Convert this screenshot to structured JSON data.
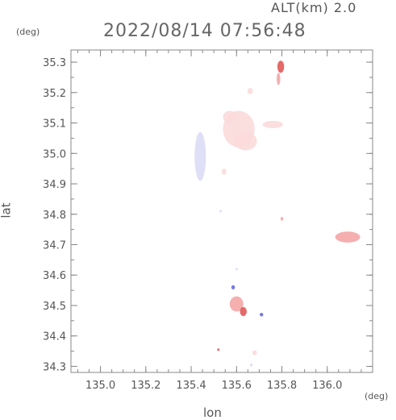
{
  "header": {
    "alt_label": "ALT(km) 2.0",
    "timestamp": "2022/08/14 07:56:48"
  },
  "chart_data": {
    "type": "heatmap",
    "title": "2022/08/14 07:56:48",
    "subtitle": "ALT(km) 2.0",
    "xlabel": "lon",
    "ylabel": "lat",
    "x_unit": "(deg)",
    "y_unit": "(deg)",
    "xlim": [
      134.87,
      136.2
    ],
    "ylim": [
      34.28,
      35.34
    ],
    "x_ticks": [
      135.0,
      135.2,
      135.4,
      135.6,
      135.8,
      136.0
    ],
    "x_tick_labels": [
      "135.0",
      "135.2",
      "135.4",
      "135.6",
      "135.8",
      "136.0"
    ],
    "y_ticks": [
      34.3,
      34.4,
      34.5,
      34.6,
      34.7,
      34.8,
      34.9,
      35.0,
      35.1,
      35.2,
      35.3
    ],
    "y_tick_labels": [
      "34.3",
      "34.4",
      "34.5",
      "34.6",
      "34.7",
      "34.8",
      "34.9",
      "35.0",
      "35.1",
      "35.2",
      "35.3"
    ],
    "grid": false,
    "colors": {
      "positive_light": "#fbdada",
      "positive_mid": "#f4a6a6",
      "positive_strong": "#e05a5a",
      "negative_light": "#dcdcf6",
      "negative_strong": "#6a6ae6"
    },
    "blobs": [
      {
        "lon": 135.61,
        "lat": 35.08,
        "rlon": 0.07,
        "rlat": 0.06,
        "intensity": 0.25
      },
      {
        "lon": 135.64,
        "lat": 35.04,
        "rlon": 0.05,
        "rlat": 0.03,
        "intensity": 0.2
      },
      {
        "lon": 135.76,
        "lat": 35.095,
        "rlon": 0.045,
        "rlat": 0.012,
        "intensity": 0.3
      },
      {
        "lon": 135.57,
        "lat": 35.12,
        "rlon": 0.03,
        "rlat": 0.02,
        "intensity": 0.2
      },
      {
        "lon": 135.795,
        "lat": 35.285,
        "rlon": 0.015,
        "rlat": 0.02,
        "intensity": 0.8
      },
      {
        "lon": 135.785,
        "lat": 35.245,
        "rlon": 0.008,
        "rlat": 0.02,
        "intensity": 0.5
      },
      {
        "lon": 135.66,
        "lat": 35.205,
        "rlon": 0.012,
        "rlat": 0.01,
        "intensity": 0.3
      },
      {
        "lon": 135.44,
        "lat": 34.99,
        "rlon": 0.025,
        "rlat": 0.08,
        "intensity": -0.25
      },
      {
        "lon": 135.545,
        "lat": 34.94,
        "rlon": 0.01,
        "rlat": 0.01,
        "intensity": 0.3
      },
      {
        "lon": 136.09,
        "lat": 34.725,
        "rlon": 0.055,
        "rlat": 0.018,
        "intensity": 0.5
      },
      {
        "lon": 135.8,
        "lat": 34.785,
        "rlon": 0.006,
        "rlat": 0.006,
        "intensity": 0.6
      },
      {
        "lon": 135.6,
        "lat": 34.505,
        "rlon": 0.03,
        "rlat": 0.025,
        "intensity": 0.5
      },
      {
        "lon": 135.63,
        "lat": 34.48,
        "rlon": 0.015,
        "rlat": 0.015,
        "intensity": 0.7
      },
      {
        "lon": 135.585,
        "lat": 34.56,
        "rlon": 0.008,
        "rlat": 0.007,
        "intensity": -0.6
      },
      {
        "lon": 135.71,
        "lat": 34.47,
        "rlon": 0.008,
        "rlat": 0.006,
        "intensity": -0.5
      },
      {
        "lon": 135.68,
        "lat": 34.345,
        "rlon": 0.01,
        "rlat": 0.008,
        "intensity": 0.3
      },
      {
        "lon": 135.665,
        "lat": 34.305,
        "rlon": 0.005,
        "rlat": 0.005,
        "intensity": -0.4
      },
      {
        "lon": 135.52,
        "lat": 34.355,
        "rlon": 0.004,
        "rlat": 0.004,
        "intensity": 0.8
      },
      {
        "lon": 135.6,
        "lat": 34.62,
        "rlon": 0.004,
        "rlat": 0.004,
        "intensity": -0.3
      },
      {
        "lon": 135.53,
        "lat": 34.81,
        "rlon": 0.004,
        "rlat": 0.004,
        "intensity": -0.3
      }
    ]
  }
}
